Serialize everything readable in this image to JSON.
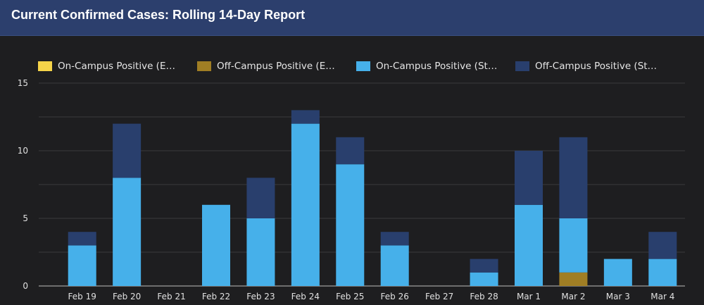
{
  "header": {
    "title": "Current Confirmed Cases: Rolling 14-Day Report"
  },
  "chart_data": {
    "type": "bar",
    "stacked": true,
    "title": "Current Confirmed Cases: Rolling 14-Day Report",
    "categories": [
      "Feb 19",
      "Feb 20",
      "Feb 21",
      "Feb 22",
      "Feb 23",
      "Feb 24",
      "Feb 25",
      "Feb 26",
      "Feb 27",
      "Feb 28",
      "Mar 1",
      "Mar 2",
      "Mar 3",
      "Mar 4"
    ],
    "series": [
      {
        "name": "On-Campus Positive (E…",
        "color": "#f6d449",
        "values": [
          0,
          0,
          0,
          0,
          0,
          0,
          0,
          0,
          0,
          0,
          0,
          0,
          0,
          0
        ]
      },
      {
        "name": "Off-Campus Positive (E…",
        "color": "#a07e24",
        "values": [
          0,
          0,
          0,
          0,
          0,
          0,
          0,
          0,
          0,
          0,
          0,
          1,
          0,
          0
        ]
      },
      {
        "name": "On-Campus Positive (St…",
        "color": "#46b0ea",
        "values": [
          3,
          8,
          0,
          6,
          5,
          12,
          9,
          3,
          0,
          1,
          6,
          4,
          2,
          2
        ]
      },
      {
        "name": "Off-Campus Positive (St…",
        "color": "#293f6d",
        "values": [
          1,
          4,
          0,
          0,
          3,
          1,
          2,
          1,
          0,
          1,
          4,
          6,
          0,
          2
        ]
      }
    ],
    "yticks": [
      0,
      5,
      10,
      15
    ],
    "ylim": [
      0,
      15
    ],
    "grid": true,
    "legend": "top",
    "xlabel": "",
    "ylabel": ""
  }
}
